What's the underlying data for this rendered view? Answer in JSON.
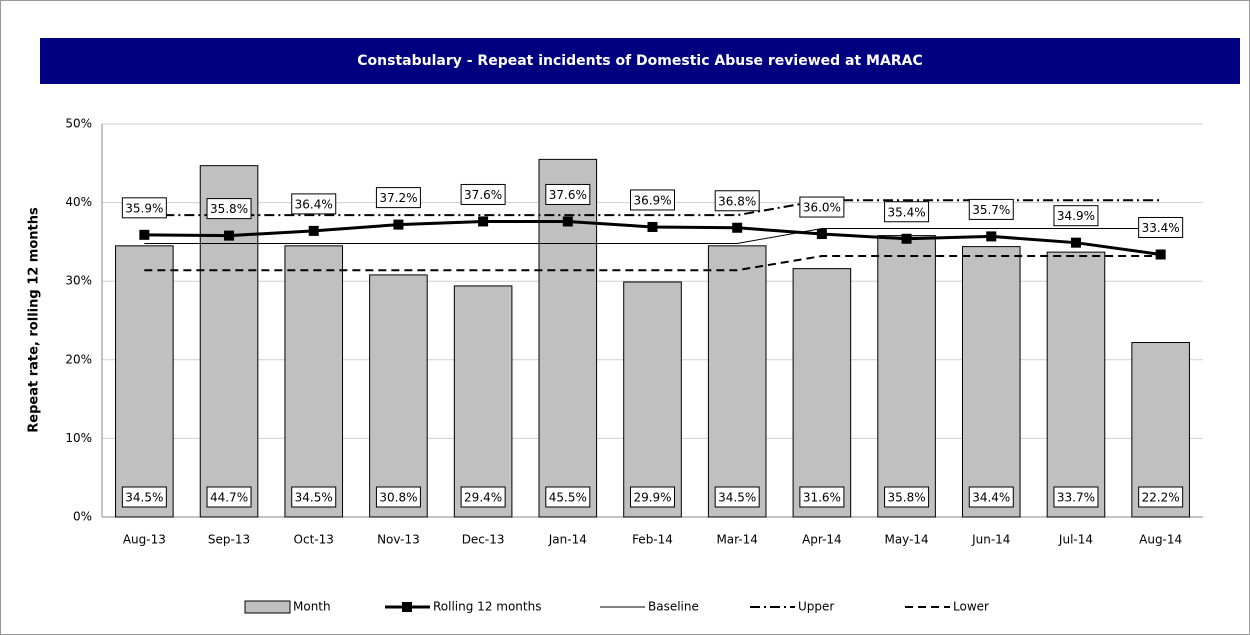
{
  "chart_data": {
    "type": "bar",
    "title": "Constabulary  - Repeat incidents of Domestic Abuse  reviewed at MARAC",
    "y_label": "Repeat rate, rolling 12 months",
    "categories": [
      "Aug-13",
      "Sep-13",
      "Oct-13",
      "Nov-13",
      "Dec-13",
      "Jan-14",
      "Feb-14",
      "Mar-14",
      "Apr-14",
      "May-14",
      "Jun-14",
      "Jul-14",
      "Aug-14"
    ],
    "series": [
      {
        "name": "Month",
        "type": "bar",
        "color": "#c0c0c0",
        "values": [
          34.5,
          44.7,
          34.5,
          30.8,
          29.4,
          45.5,
          29.9,
          34.5,
          31.6,
          35.8,
          34.4,
          33.7,
          22.2
        ],
        "value_labels": [
          "34.5%",
          "44.7%",
          "34.5%",
          "30.8%",
          "29.4%",
          "45.5%",
          "29.9%",
          "34.5%",
          "31.6%",
          "35.8%",
          "34.4%",
          "33.7%",
          "22.2%"
        ]
      },
      {
        "name": "Rolling 12 months",
        "type": "line",
        "color": "#000000",
        "dash": "solid",
        "marker": "square",
        "width": 3,
        "values": [
          35.9,
          35.8,
          36.4,
          37.2,
          37.6,
          37.6,
          36.9,
          36.8,
          36.0,
          35.4,
          35.7,
          34.9,
          33.4
        ],
        "value_labels": [
          "35.9%",
          "35.8%",
          "36.4%",
          "37.2%",
          "37.6%",
          "37.6%",
          "36.9%",
          "36.8%",
          "36.0%",
          "35.4%",
          "35.7%",
          "34.9%",
          "33.4%"
        ]
      },
      {
        "name": "Baseline",
        "type": "line",
        "color": "#000000",
        "dash": "solid",
        "width": 1,
        "values": [
          34.8,
          34.8,
          34.8,
          34.8,
          34.8,
          34.8,
          34.8,
          34.8,
          36.7,
          36.7,
          36.7,
          36.7,
          36.7
        ]
      },
      {
        "name": "Upper",
        "type": "line",
        "color": "#000000",
        "dash": "dashdot",
        "width": 2,
        "values": [
          38.4,
          38.4,
          38.4,
          38.4,
          38.4,
          38.4,
          38.4,
          38.4,
          40.3,
          40.3,
          40.3,
          40.3,
          40.3
        ]
      },
      {
        "name": "Lower",
        "type": "line",
        "color": "#000000",
        "dash": "dash",
        "width": 2,
        "values": [
          31.4,
          31.4,
          31.4,
          31.4,
          31.4,
          31.4,
          31.4,
          31.4,
          33.2,
          33.2,
          33.2,
          33.2,
          33.2
        ]
      }
    ],
    "ylim": [
      0,
      50
    ],
    "yticks": [
      {
        "value": 0,
        "label": "0%"
      },
      {
        "value": 10,
        "label": "10%"
      },
      {
        "value": 20,
        "label": "20%"
      },
      {
        "value": 30,
        "label": "30%"
      },
      {
        "value": 40,
        "label": "40%"
      },
      {
        "value": 50,
        "label": "50%"
      }
    ],
    "grid": true,
    "legend": "bottom",
    "header_color": "#000080"
  }
}
